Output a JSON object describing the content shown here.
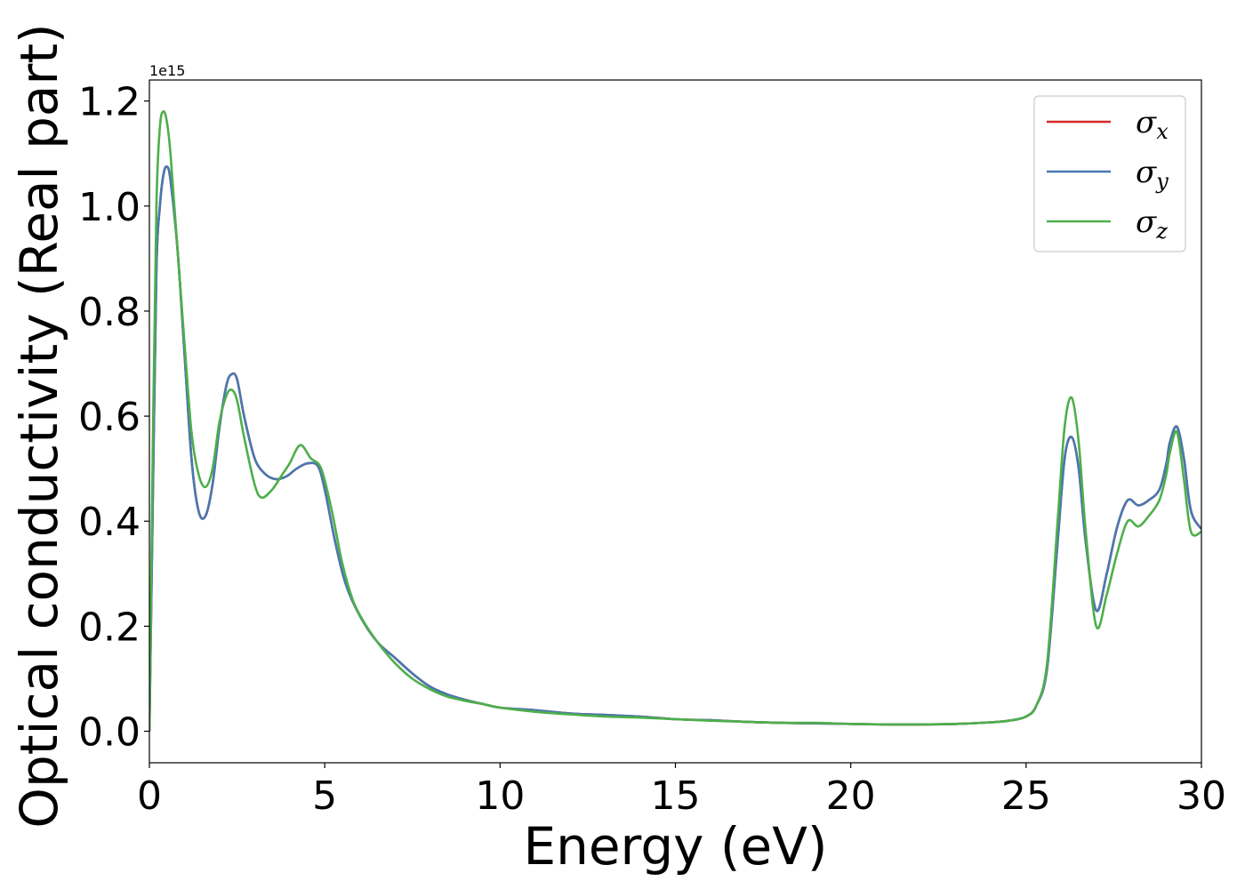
{
  "chart_data": {
    "type": "line",
    "title": "",
    "xlabel": "Energy (eV)",
    "ylabel": "Optical conductivity (Real part)",
    "y_offset_label": "1e15",
    "xlim": [
      0,
      30
    ],
    "ylim": [
      -0.06,
      1.24
    ],
    "xticks": [
      0,
      5,
      10,
      15,
      20,
      25,
      30
    ],
    "xtick_labels": [
      "0",
      "5",
      "10",
      "15",
      "20",
      "25",
      "30"
    ],
    "yticks": [
      0.0,
      0.2,
      0.4,
      0.6,
      0.8,
      1.0,
      1.2
    ],
    "ytick_labels": [
      "0.0",
      "0.2",
      "0.4",
      "0.6",
      "0.8",
      "1.0",
      "1.2"
    ],
    "grid": false,
    "legend_position": "top-right",
    "series": [
      {
        "name": "σx",
        "base": "σ",
        "sub": "x",
        "color": "#d62728",
        "x": [
          0,
          0.1,
          0.2,
          0.3,
          0.4,
          0.5,
          0.6,
          0.8,
          1.0,
          1.2,
          1.4,
          1.6,
          1.8,
          2.0,
          2.2,
          2.35,
          2.5,
          2.7,
          3.0,
          3.3,
          3.6,
          3.9,
          4.2,
          4.5,
          4.8,
          5.0,
          5.3,
          5.6,
          6.0,
          6.5,
          7.0,
          7.5,
          8.0,
          8.5,
          9.0,
          9.5,
          10,
          11,
          12,
          13,
          14,
          15,
          16,
          17,
          18,
          19,
          20,
          21,
          22,
          23,
          24,
          24.5,
          25,
          25.3,
          25.6,
          25.9,
          26.1,
          26.3,
          26.5,
          26.7,
          27.0,
          27.3,
          27.6,
          27.9,
          28.2,
          28.5,
          28.8,
          29.0,
          29.1,
          29.3,
          29.5,
          29.7,
          30
        ],
        "y": [
          0.0,
          0.45,
          0.88,
          1.0,
          1.06,
          1.075,
          1.05,
          0.92,
          0.72,
          0.52,
          0.42,
          0.41,
          0.47,
          0.58,
          0.66,
          0.68,
          0.67,
          0.6,
          0.52,
          0.49,
          0.48,
          0.485,
          0.5,
          0.51,
          0.505,
          0.46,
          0.36,
          0.28,
          0.22,
          0.17,
          0.14,
          0.11,
          0.085,
          0.07,
          0.06,
          0.052,
          0.045,
          0.04,
          0.034,
          0.031,
          0.028,
          0.023,
          0.021,
          0.018,
          0.016,
          0.015,
          0.014,
          0.013,
          0.013,
          0.014,
          0.017,
          0.02,
          0.028,
          0.05,
          0.12,
          0.36,
          0.52,
          0.56,
          0.5,
          0.36,
          0.23,
          0.3,
          0.39,
          0.44,
          0.43,
          0.44,
          0.46,
          0.51,
          0.55,
          0.58,
          0.52,
          0.42,
          0.385
        ]
      },
      {
        "name": "σy",
        "base": "σ",
        "sub": "y",
        "color": "#4878b0",
        "x": [
          0,
          0.1,
          0.2,
          0.3,
          0.4,
          0.5,
          0.6,
          0.8,
          1.0,
          1.2,
          1.4,
          1.6,
          1.8,
          2.0,
          2.2,
          2.35,
          2.5,
          2.7,
          3.0,
          3.3,
          3.6,
          3.9,
          4.2,
          4.5,
          4.8,
          5.0,
          5.3,
          5.6,
          6.0,
          6.5,
          7.0,
          7.5,
          8.0,
          8.5,
          9.0,
          9.5,
          10,
          11,
          12,
          13,
          14,
          15,
          16,
          17,
          18,
          19,
          20,
          21,
          22,
          23,
          24,
          24.5,
          25,
          25.3,
          25.6,
          25.9,
          26.1,
          26.3,
          26.5,
          26.7,
          27.0,
          27.3,
          27.6,
          27.9,
          28.2,
          28.5,
          28.8,
          29.0,
          29.1,
          29.3,
          29.5,
          29.7,
          30
        ],
        "y": [
          0.0,
          0.45,
          0.88,
          1.0,
          1.06,
          1.075,
          1.05,
          0.92,
          0.72,
          0.52,
          0.42,
          0.41,
          0.47,
          0.58,
          0.66,
          0.68,
          0.67,
          0.6,
          0.52,
          0.49,
          0.48,
          0.485,
          0.5,
          0.51,
          0.505,
          0.46,
          0.36,
          0.28,
          0.22,
          0.17,
          0.14,
          0.11,
          0.085,
          0.07,
          0.06,
          0.052,
          0.045,
          0.04,
          0.034,
          0.031,
          0.028,
          0.023,
          0.021,
          0.018,
          0.016,
          0.015,
          0.014,
          0.013,
          0.013,
          0.014,
          0.017,
          0.02,
          0.028,
          0.05,
          0.12,
          0.36,
          0.52,
          0.56,
          0.5,
          0.36,
          0.23,
          0.3,
          0.39,
          0.44,
          0.43,
          0.44,
          0.46,
          0.51,
          0.55,
          0.58,
          0.52,
          0.42,
          0.385
        ]
      },
      {
        "name": "σz",
        "base": "σ",
        "sub": "z",
        "color": "#4daf4a",
        "x": [
          0,
          0.1,
          0.2,
          0.3,
          0.4,
          0.5,
          0.6,
          0.8,
          1.0,
          1.2,
          1.4,
          1.6,
          1.8,
          2.0,
          2.2,
          2.35,
          2.5,
          2.7,
          3.0,
          3.2,
          3.5,
          3.8,
          4.0,
          4.3,
          4.6,
          4.9,
          5.2,
          5.5,
          5.8,
          6.1,
          6.5,
          7.0,
          7.5,
          8.0,
          8.5,
          9.0,
          9.5,
          10,
          11,
          12,
          13,
          14,
          15,
          16,
          17,
          18,
          19,
          20,
          21,
          22,
          23,
          24,
          24.5,
          25,
          25.3,
          25.6,
          25.9,
          26.1,
          26.3,
          26.5,
          26.7,
          27.0,
          27.3,
          27.6,
          27.9,
          28.2,
          28.5,
          28.8,
          29.0,
          29.1,
          29.3,
          29.5,
          29.7,
          30
        ],
        "y": [
          0.0,
          0.55,
          1.0,
          1.15,
          1.18,
          1.16,
          1.1,
          0.92,
          0.74,
          0.57,
          0.49,
          0.465,
          0.5,
          0.59,
          0.64,
          0.65,
          0.63,
          0.56,
          0.47,
          0.445,
          0.46,
          0.49,
          0.51,
          0.545,
          0.52,
          0.5,
          0.42,
          0.32,
          0.25,
          0.21,
          0.17,
          0.13,
          0.1,
          0.08,
          0.066,
          0.058,
          0.052,
          0.045,
          0.037,
          0.032,
          0.028,
          0.026,
          0.023,
          0.02,
          0.018,
          0.016,
          0.016,
          0.014,
          0.013,
          0.013,
          0.014,
          0.017,
          0.02,
          0.028,
          0.05,
          0.13,
          0.4,
          0.58,
          0.635,
          0.55,
          0.38,
          0.2,
          0.26,
          0.34,
          0.4,
          0.39,
          0.41,
          0.44,
          0.49,
          0.53,
          0.57,
          0.48,
          0.38,
          0.38
        ]
      }
    ]
  }
}
